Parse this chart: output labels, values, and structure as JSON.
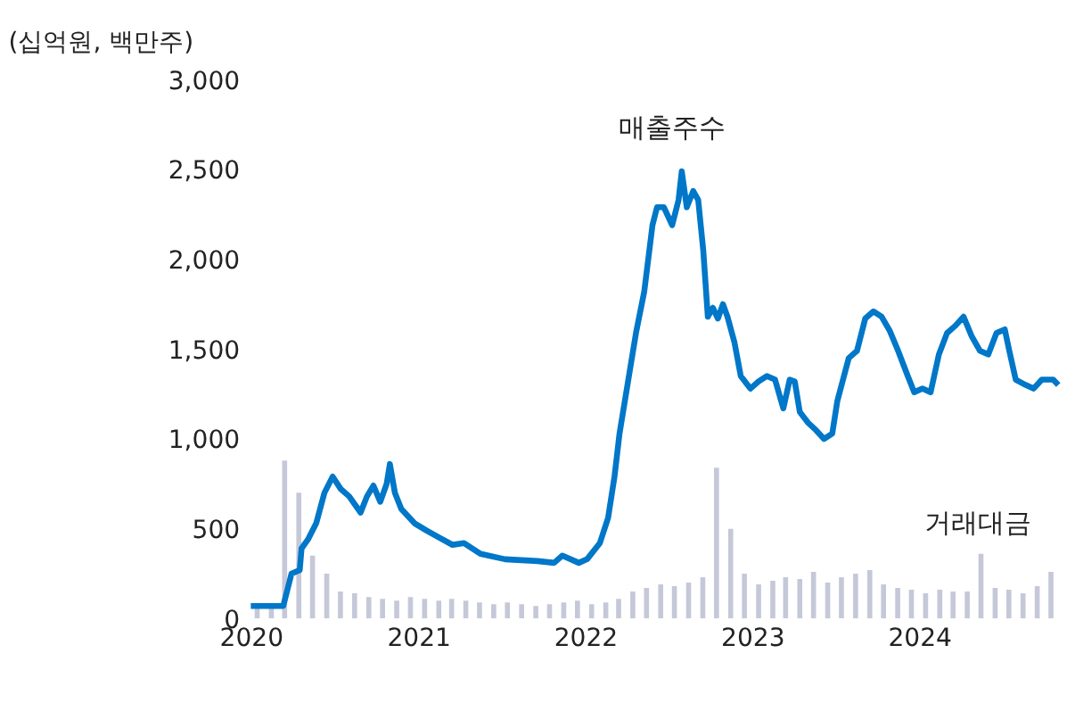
{
  "chart_data": {
    "type": "line",
    "ylabel": "(십억원, 백만주)",
    "xlim": [
      "2020-01-01",
      "2024-10-31"
    ],
    "xticks": [
      {
        "value": "2020-01-01",
        "label": "2020"
      },
      {
        "value": "2021-01-01",
        "label": "2021"
      },
      {
        "value": "2022-01-01",
        "label": "2022"
      },
      {
        "value": "2023-01-01",
        "label": "2023"
      },
      {
        "value": "2024-01-01",
        "label": "2024"
      }
    ],
    "ylim": [
      0,
      3000
    ],
    "yticks": [
      0,
      {
        "value": 500,
        "label": "500"
      },
      {
        "value": 1000,
        "label": "1,000"
      },
      {
        "value": 1500,
        "label": "1,500"
      },
      {
        "value": 2000,
        "label": "2,000"
      },
      {
        "value": 2500,
        "label": "2,500"
      },
      {
        "value": 3000,
        "label": "3,000"
      }
    ],
    "series": [
      {
        "type": "bar",
        "name": "거래대금",
        "color": "#c5c8d8",
        "x": [
          "2020-01-15",
          "2020-02-15",
          "2020-03-15",
          "2020-04-15",
          "2020-05-15",
          "2020-06-15",
          "2020-07-15",
          "2020-08-15",
          "2020-09-15",
          "2020-10-15",
          "2020-11-15",
          "2020-12-15",
          "2021-01-15",
          "2021-02-15",
          "2021-03-15",
          "2021-04-15",
          "2021-05-15",
          "2021-06-15",
          "2021-07-15",
          "2021-08-15",
          "2021-09-15",
          "2021-10-15",
          "2021-11-15",
          "2021-12-15",
          "2022-01-15",
          "2022-02-15",
          "2022-03-15",
          "2022-04-15",
          "2022-05-15",
          "2022-06-15",
          "2022-07-15",
          "2022-08-15",
          "2022-09-15",
          "2022-10-15",
          "2022-11-15",
          "2022-12-15",
          "2023-01-15",
          "2023-02-15",
          "2023-03-15",
          "2023-04-15",
          "2023-05-15",
          "2023-06-15",
          "2023-07-15",
          "2023-08-15",
          "2023-09-15",
          "2023-10-15",
          "2023-11-15",
          "2023-12-15",
          "2024-01-15",
          "2024-02-15",
          "2024-03-15",
          "2024-04-15",
          "2024-05-15",
          "2024-06-15",
          "2024-07-15",
          "2024-08-15",
          "2024-09-15",
          "2024-10-15"
        ],
        "values": [
          60,
          80,
          880,
          700,
          350,
          250,
          150,
          140,
          120,
          110,
          100,
          120,
          110,
          100,
          110,
          100,
          90,
          80,
          90,
          80,
          70,
          80,
          90,
          100,
          80,
          90,
          110,
          150,
          170,
          190,
          180,
          200,
          230,
          840,
          500,
          250,
          190,
          210,
          230,
          220,
          260,
          200,
          230,
          250,
          270,
          190,
          170,
          160,
          140,
          160,
          150,
          150,
          360,
          170,
          160,
          140,
          180,
          260
        ]
      },
      {
        "name": "매출주수",
        "color": "#0077c8",
        "x": [
          "2020-01-01",
          "2020-03-12",
          "2020-03-30",
          "2020-04-17",
          "2020-04-21",
          "2020-05-05",
          "2020-05-23",
          "2020-06-10",
          "2020-06-28",
          "2020-07-16",
          "2020-08-03",
          "2020-08-28",
          "2020-09-11",
          "2020-09-25",
          "2020-10-10",
          "2020-10-24",
          "2020-10-31",
          "2020-11-11",
          "2020-11-25",
          "2020-12-24",
          "2021-01-19",
          "2021-02-16",
          "2021-03-17",
          "2021-04-11",
          "2021-05-17",
          "2021-07-10",
          "2021-09-19",
          "2021-10-25",
          "2021-11-12",
          "2021-12-18",
          "2022-01-05",
          "2022-02-02",
          "2022-02-20",
          "2022-03-06",
          "2022-03-17",
          "2022-04-04",
          "2022-04-22",
          "2022-05-10",
          "2022-05-28",
          "2022-06-07",
          "2022-06-22",
          "2022-07-10",
          "2022-07-24",
          "2022-07-31",
          "2022-08-11",
          "2022-08-25",
          "2022-09-05",
          "2022-09-16",
          "2022-09-26",
          "2022-10-07",
          "2022-10-18",
          "2022-10-29",
          "2022-11-08",
          "2022-11-23",
          "2022-12-07",
          "2022-12-28",
          "2023-01-15",
          "2023-02-02",
          "2023-02-20",
          "2023-03-10",
          "2023-03-24",
          "2023-04-04",
          "2023-04-15",
          "2023-05-03",
          "2023-05-20",
          "2023-06-07",
          "2023-06-25",
          "2023-07-06",
          "2023-07-31",
          "2023-08-18",
          "2023-09-05",
          "2023-09-23",
          "2023-10-11",
          "2023-10-29",
          "2023-11-16",
          "2023-12-04",
          "2023-12-21",
          "2024-01-08",
          "2024-01-26",
          "2024-02-13",
          "2024-03-02",
          "2024-03-20",
          "2024-04-07",
          "2024-04-25",
          "2024-05-13",
          "2024-05-31",
          "2024-06-18",
          "2024-07-06",
          "2024-07-16",
          "2024-07-30",
          "2024-08-21",
          "2024-09-07",
          "2024-09-25",
          "2024-10-20",
          "2024-10-31"
        ],
        "values": [
          70,
          70,
          250,
          270,
          390,
          440,
          530,
          700,
          790,
          720,
          680,
          590,
          680,
          740,
          650,
          750,
          860,
          700,
          610,
          530,
          490,
          450,
          410,
          420,
          360,
          330,
          320,
          310,
          350,
          310,
          330,
          420,
          560,
          790,
          1030,
          1310,
          1590,
          1820,
          2190,
          2290,
          2290,
          2190,
          2330,
          2490,
          2290,
          2380,
          2330,
          2050,
          1680,
          1730,
          1670,
          1750,
          1680,
          1540,
          1350,
          1280,
          1320,
          1350,
          1330,
          1170,
          1330,
          1320,
          1150,
          1090,
          1050,
          1000,
          1030,
          1210,
          1450,
          1490,
          1670,
          1710,
          1680,
          1600,
          1490,
          1370,
          1260,
          1280,
          1260,
          1470,
          1590,
          1630,
          1680,
          1570,
          1490,
          1470,
          1590,
          1610,
          1490,
          1330,
          1300,
          1280,
          1330,
          1330,
          1300
        ]
      }
    ]
  }
}
